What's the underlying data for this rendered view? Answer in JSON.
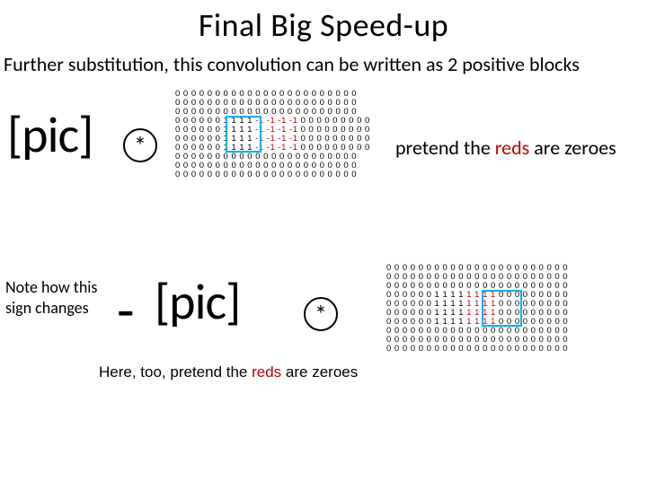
{
  "title": "Final Big Speed-up",
  "subtitle": "Further substitution, this convolution can be written as 2 positive blocks",
  "pic_label": "[pic]",
  "star_label": "*",
  "minus_label": "-",
  "note_text": "Note how this sign changes",
  "pretend_pre": "pretend the ",
  "pretend_red": "reds",
  "pretend_post": " are zeroes",
  "caption2_pre": "Here, too, pretend the ",
  "caption2_red": "reds",
  "caption2_post": " are zeroes",
  "matrix1": {
    "rows": 10,
    "cols": 23,
    "ones_region": {
      "r0": 3,
      "r1": 6,
      "c0": 6,
      "c1": 9
    },
    "neg_region": {
      "r0": 3,
      "r1": 6,
      "c0": 10,
      "c1": 13
    },
    "box_region": {
      "r0": 3,
      "r1": 6,
      "c0": 6,
      "c1": 9
    },
    "box_color": "#00b0f0",
    "text_fontsize": 9.5,
    "red_color": "#c00000"
  },
  "matrix2": {
    "rows": 10,
    "cols": 23,
    "ones_region": {
      "r0": 3,
      "r1": 6,
      "c0": 6,
      "c1": 13
    },
    "red_region": {
      "r0": 3,
      "r1": 6,
      "c0": 10,
      "c1": 13
    },
    "box_region": {
      "r0": 3,
      "r1": 6,
      "c0": 10,
      "c1": 13
    },
    "box_color": "#00b0f0",
    "text_fontsize": 9.5,
    "red_color": "#c00000"
  },
  "colors": {
    "red": "#c00000",
    "box": "#00b0f0",
    "bg": "#ffffff",
    "text": "#000000"
  }
}
